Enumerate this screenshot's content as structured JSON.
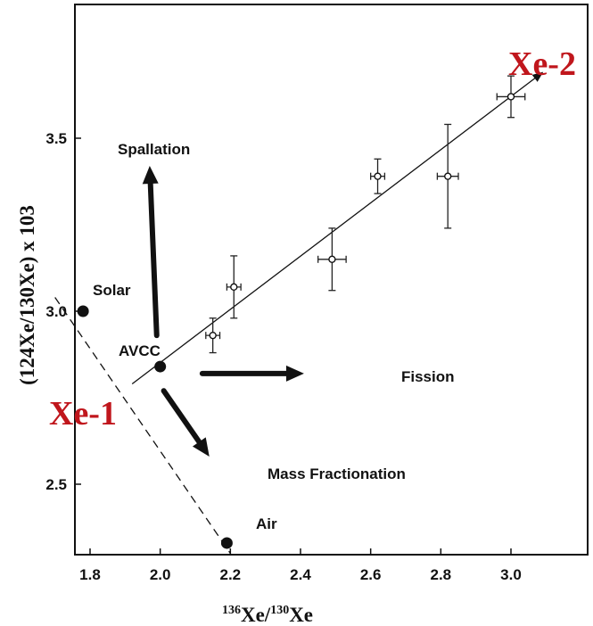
{
  "chart_data": {
    "type": "scatter",
    "xlabel": {
      "main": "Xe/",
      "sup1": "136",
      "sup2": "130",
      "tail": "Xe"
    },
    "ylabel": "(124Xe/130Xe) x 103",
    "xlim": [
      1.7,
      3.1
    ],
    "ylim": [
      2.3,
      3.9
    ],
    "xticks": [
      1.8,
      2.0,
      2.2,
      2.4,
      2.6,
      2.8,
      3.0
    ],
    "xtick_labels": [
      "1.8",
      "2.0",
      "2.2",
      "2.4",
      "2.6",
      "2.8",
      "3.0"
    ],
    "yticks": [
      2.5,
      3.0,
      3.5
    ],
    "ytick_labels": [
      "2.5",
      "3.0",
      "3.5"
    ],
    "grid": false,
    "reference_points": [
      {
        "label": "Solar",
        "x": 1.78,
        "y": 3.0
      },
      {
        "label": "AVCC",
        "x": 2.0,
        "y": 2.84
      },
      {
        "label": "Air",
        "x": 2.19,
        "y": 2.33
      }
    ],
    "measurements": [
      {
        "x": 2.15,
        "y": 2.93,
        "xerr": 0.02,
        "yerr": 0.05
      },
      {
        "x": 2.21,
        "y": 3.07,
        "xerr": 0.02,
        "yerr": 0.09
      },
      {
        "x": 2.49,
        "y": 3.15,
        "xerr": 0.04,
        "yerr": 0.09
      },
      {
        "x": 2.62,
        "y": 3.39,
        "xerr": 0.02,
        "yerr": 0.05
      },
      {
        "x": 2.82,
        "y": 3.39,
        "xerr": 0.03,
        "yerr": 0.15
      },
      {
        "x": 3.0,
        "y": 3.62,
        "xerr": 0.04,
        "yerr": 0.06
      }
    ],
    "lines": [
      {
        "name": "Xe-2 line",
        "x": [
          1.92,
          3.09
        ],
        "y": [
          2.79,
          3.69
        ]
      },
      {
        "name": "Xe-1 line",
        "x": [
          1.7,
          2.2
        ],
        "y": [
          3.04,
          2.3
        ]
      }
    ],
    "arrows": [
      {
        "label": "Spallation",
        "from": [
          1.99,
          2.93
        ],
        "to": [
          1.97,
          3.42
        ]
      },
      {
        "label": "Fission",
        "from": [
          2.12,
          2.82
        ],
        "to": [
          2.41,
          2.82
        ]
      },
      {
        "label": "Mass Fractionation",
        "from": [
          2.01,
          2.77
        ],
        "to": [
          2.14,
          2.58
        ]
      }
    ],
    "annotations": [
      "Spallation",
      "Solar",
      "AVCC",
      "Fission",
      "Mass Fractionation",
      "Air"
    ],
    "components": [
      "Xe-1",
      "Xe-2"
    ]
  }
}
